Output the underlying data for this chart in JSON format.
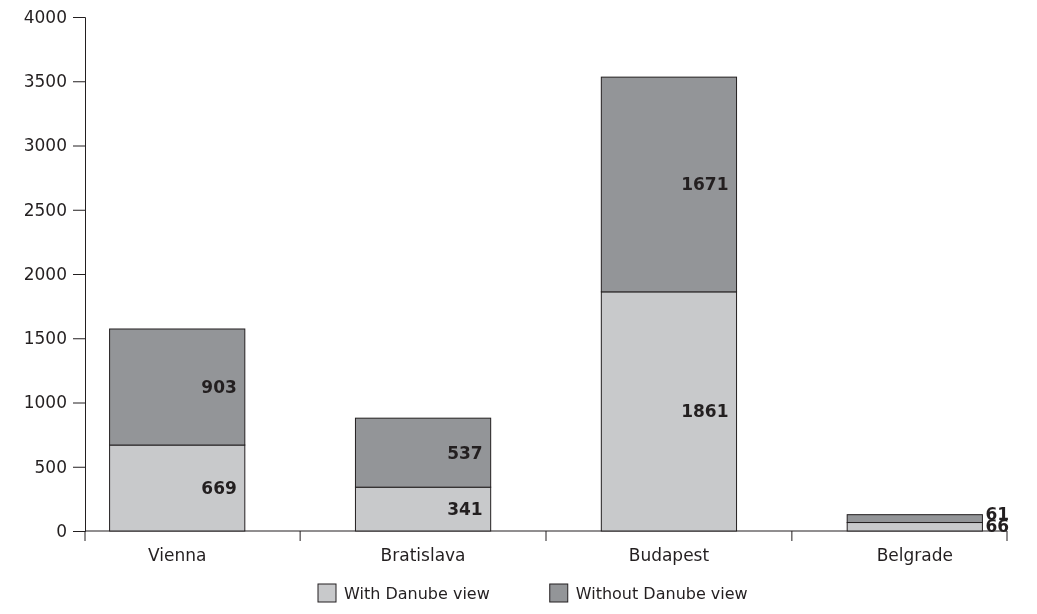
{
  "chart_data": {
    "type": "bar",
    "stacked": true,
    "categories": [
      "Vienna",
      "Bratislava",
      "Budapest",
      "Belgrade"
    ],
    "series": [
      {
        "name": "With Danube view",
        "color": "#c8c9cb",
        "values": [
          669,
          341,
          1861,
          66
        ]
      },
      {
        "name": "Without Danube view",
        "color": "#939598",
        "values": [
          903,
          537,
          1671,
          61
        ]
      }
    ],
    "ylim": [
      0,
      4000
    ],
    "yticks": [
      0,
      500,
      1000,
      1500,
      2000,
      2500,
      3000,
      3500,
      4000
    ],
    "data_labels": true,
    "legend": "bottom",
    "grid": false
  }
}
